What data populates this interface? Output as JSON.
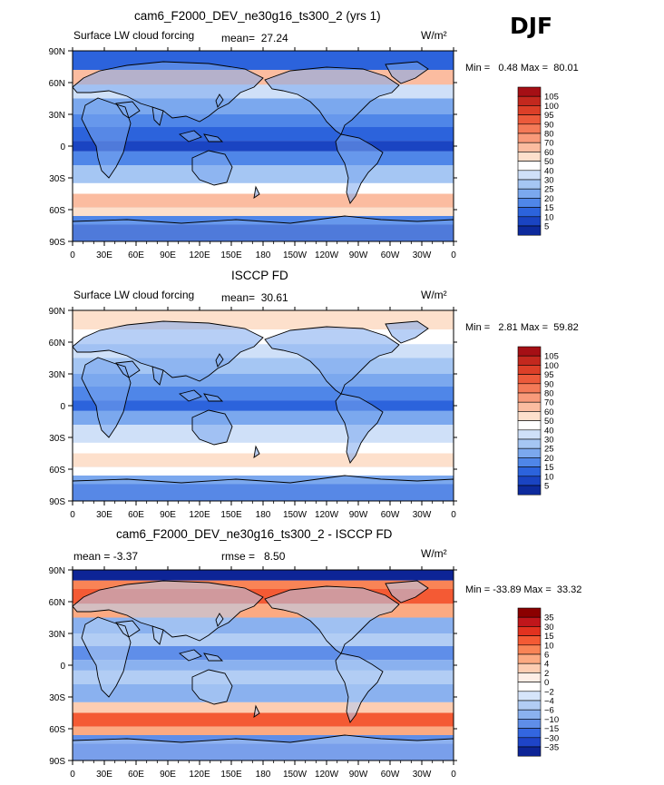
{
  "season": "DJF",
  "units": "W/m²",
  "panels": [
    {
      "title": "cam6_F2000_DEV_ne30g16_ts300_2 (yrs 1)",
      "field": "Surface LW cloud forcing",
      "stat1": "mean=  27.24",
      "stat2": "",
      "minmax": "Min =   0.48 Max =  80.01",
      "legend": [
        "105",
        "100",
        "95",
        "90",
        "80",
        "70",
        "60",
        "50",
        "40",
        "30",
        "25",
        "20",
        "15",
        "10",
        "5"
      ],
      "legend_colors": [
        "#a50f15",
        "#c3281e",
        "#dc3f28",
        "#ec5a3b",
        "#f47a58",
        "#f99a7a",
        "#fbbca0",
        "#fde0cc",
        "#ffffff",
        "#cfe0f8",
        "#a5c6f3",
        "#7ba8ee",
        "#4f86e8",
        "#2c63dc",
        "#1a44c2",
        "#0d2a9c"
      ]
    },
    {
      "title": "ISCCP FD",
      "field": "Surface LW cloud forcing",
      "stat1": "mean=  30.61",
      "stat2": "",
      "minmax": "Min =   2.81 Max =  59.82",
      "legend": [
        "105",
        "100",
        "95",
        "90",
        "80",
        "70",
        "60",
        "50",
        "40",
        "30",
        "25",
        "20",
        "15",
        "10",
        "5"
      ],
      "legend_colors": [
        "#a50f15",
        "#c3281e",
        "#dc3f28",
        "#ec5a3b",
        "#f47a58",
        "#f99a7a",
        "#fbbca0",
        "#fde0cc",
        "#ffffff",
        "#cfe0f8",
        "#a5c6f3",
        "#7ba8ee",
        "#4f86e8",
        "#2c63dc",
        "#1a44c2",
        "#0d2a9c"
      ]
    },
    {
      "title": "cam6_F2000_DEV_ne30g16_ts300_2 - ISCCP FD",
      "field": "",
      "stat1": "mean = -3.37",
      "stat2": "rmse =   8.50",
      "minmax": "Min = -33.89 Max =  33.32",
      "legend": [
        "35",
        "30",
        "15",
        "10",
        "6",
        "4",
        "2",
        "0",
        "−2",
        "−4",
        "−6",
        "−10",
        "−15",
        "−30",
        "−35"
      ],
      "legend_colors": [
        "#8b0000",
        "#c0161b",
        "#e2321f",
        "#f45a34",
        "#f98456",
        "#fcaa82",
        "#fdcdb2",
        "#feeee6",
        "#ffffff",
        "#d6e5fa",
        "#b2cdf4",
        "#8ab1ef",
        "#5f8ee9",
        "#3366e0",
        "#1e44c8",
        "#0d2496"
      ]
    }
  ],
  "chart_data": {
    "type": "heatmap",
    "x_ticks": [
      "0",
      "30E",
      "60E",
      "90E",
      "120E",
      "150E",
      "180",
      "150W",
      "120W",
      "90W",
      "60W",
      "30W",
      "0"
    ],
    "y_ticks": [
      "90N",
      "60N",
      "30N",
      "0",
      "30S",
      "60S",
      "90S"
    ],
    "xlim": [
      0,
      360
    ],
    "ylim": [
      -90,
      90
    ],
    "panel_stats": [
      {
        "name": "model",
        "mean": 27.24,
        "min": 0.48,
        "max": 80.01
      },
      {
        "name": "obs",
        "mean": 30.61,
        "min": 2.81,
        "max": 59.82
      },
      {
        "name": "diff",
        "mean": -3.37,
        "rmse": 8.5,
        "min": -33.89,
        "max": 33.32
      }
    ]
  }
}
